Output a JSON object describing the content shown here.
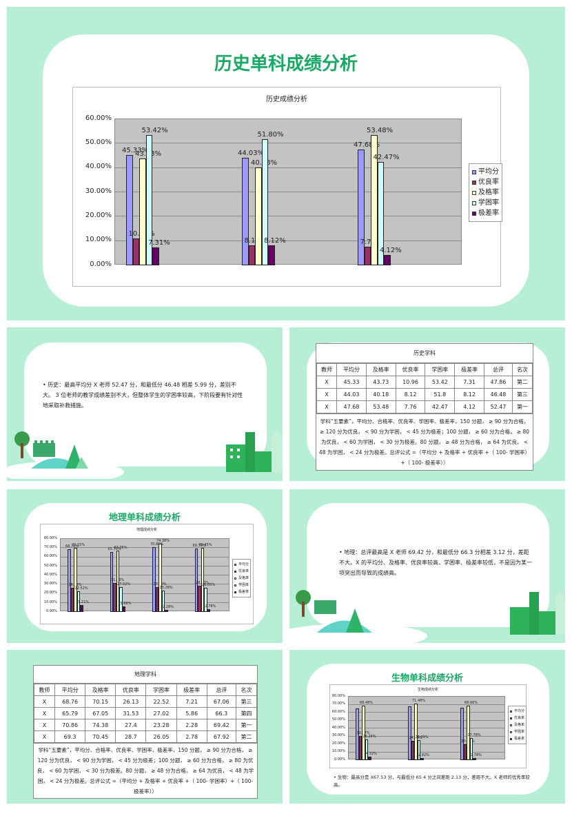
{
  "slide1": {
    "title": "历史单科成绩分析",
    "chart_data": {
      "type": "bar",
      "title": "历史成绩分析",
      "categories": [
        "",
        "",
        ""
      ],
      "yticks": [
        "60.00%",
        "50.00%",
        "40.00%",
        "30.00%",
        "20.00%",
        "10.00%",
        "0.00%"
      ],
      "ylim": [
        0,
        60
      ],
      "series": [
        {
          "name": "平均分",
          "color": "#9999ff",
          "values": [
            45.33,
            44.03,
            47.68
          ],
          "labels": [
            "45.33%",
            "44.03%",
            "47.68%"
          ]
        },
        {
          "name": "优良率",
          "color": "#993366",
          "values": [
            10.96,
            8.12,
            7.76
          ],
          "labels": [
            "10.96%",
            "8.12%",
            "7.76%"
          ]
        },
        {
          "name": "及格率",
          "color": "#ffffcc",
          "values": [
            43.73,
            40.18,
            53.48
          ],
          "labels": [
            "43.73%",
            "40.18%",
            "53.48%"
          ]
        },
        {
          "name": "学困率",
          "color": "#ccffff",
          "values": [
            53.42,
            51.8,
            42.47
          ],
          "labels": [
            "53.42%",
            "51.80%",
            "42.47%"
          ]
        },
        {
          "name": "极差率",
          "color": "#660066",
          "values": [
            7.31,
            8.12,
            4.12
          ],
          "labels": [
            "7.31%",
            "8.12%",
            "4.12%"
          ]
        }
      ],
      "legend": "right"
    }
  },
  "slide2": {
    "text": "• 历史：最高平均分 X 老师 52.47 分，和最低分 46.48 相差 5.99 分，差别不大。 3 位老师的教学成绩差别不大，但整体学生的学困率较高，下阶段要有针对性地采取补救措施。"
  },
  "slide3": {
    "table_title": "历史学科",
    "headers": [
      "教师",
      "平均分",
      "及格率",
      "优良率",
      "学困率",
      "极差率",
      "总评",
      "名次"
    ],
    "rows": [
      [
        "X",
        "45.33",
        "43.73",
        "10.96",
        "53.42",
        "7.31",
        "47.86",
        "第二"
      ],
      [
        "X",
        "44.03",
        "40.18",
        "8.12",
        "51.8",
        "8.12",
        "46.48",
        "第三"
      ],
      [
        "X",
        "47.68",
        "53.48",
        "7.76",
        "42.47",
        "4.12",
        "52.47",
        "第一"
      ]
    ],
    "note": "学科“五要素”，平均分、合格率、优良率、学困率、极差率，150 分题， ≥ 90 分为合格， ≥ 120 分为优良， < 90 分为学困， < 45 分为极差；100 分题， ≥ 60 分为合格， ≥ 80 为优良， < 60 为学困， < 30 分为极差。80 分题， ≥ 48 分为合格， ≥ 64 为优良， < 48 为学困， < 24 分为极差。总评公式 =（平均分 + 及格率 + 优良率 +（ 100- 学困率）+（ 100- 极差率））"
  },
  "slide4": {
    "title": "地理单科成绩分析",
    "chart_data": {
      "type": "bar",
      "title": "地理成绩分析",
      "categories": [
        "",
        "",
        "",
        ""
      ],
      "yticks": [
        "80.00%",
        "70.00%",
        "60.00%",
        "50.00%",
        "40.00%",
        "30.00%",
        "20.00%",
        "10.00%",
        "0.00%"
      ],
      "ylim": [
        0,
        80
      ],
      "series": [
        {
          "name": "平均分",
          "color": "#9999ff",
          "values": [
            68.76,
            65.79,
            70.86,
            69.3
          ],
          "labels": [
            "68.76%",
            "65.79%",
            "70.86%",
            "69.30%"
          ]
        },
        {
          "name": "优良率",
          "color": "#993366",
          "values": [
            26.13,
            31.53,
            27.4,
            28.7
          ],
          "labels": [
            "26.13%",
            "31.53%",
            "27.40%",
            "28.70%"
          ]
        },
        {
          "name": "及格率",
          "color": "#ffffcc",
          "values": [
            70.15,
            67.05,
            74.38,
            70.45
          ],
          "labels": [
            "70.15%",
            "67.05%",
            "74.38%",
            "70.45%"
          ]
        },
        {
          "name": "学困率",
          "color": "#ccffff",
          "values": [
            22.52,
            27.02,
            23.28,
            26.05
          ],
          "labels": [
            "22.52%",
            "27.02%",
            "23.28%",
            "26.05%"
          ]
        },
        {
          "name": "极差率",
          "color": "#660066",
          "values": [
            7.21,
            5.86,
            2.28,
            2.78
          ],
          "labels": [
            "7.21%",
            "5.86%",
            "2.28%",
            "2.78%"
          ]
        }
      ],
      "legend": "right"
    }
  },
  "slide5": {
    "text": "• 地理：总评最高是 X 老师 69.42 分，和最低分 66.3 分相差 3.12 分，差距不大。X 的平均分、及格率、优良率较高，学困率、极差率较低，不是因为某一项突出而导致的成绩高。"
  },
  "slide6": {
    "table_title": "地理学科",
    "headers": [
      "教师",
      "平均分",
      "及格率",
      "优良率",
      "学困率",
      "极差率",
      "总评",
      "名次"
    ],
    "rows": [
      [
        "X",
        "68.76",
        "70.15",
        "26.13",
        "22.52",
        "7.21",
        "67.06",
        "第三"
      ],
      [
        "X",
        "65.79",
        "67.05",
        "31.53",
        "27.02",
        "5.86",
        "66.3",
        "第四"
      ],
      [
        "X",
        "70.86",
        "74.38",
        "27.4",
        "23.28",
        "2.28",
        "69.42",
        "第一"
      ],
      [
        "X",
        "69.3",
        "70.45",
        "28.7",
        "26.05",
        "2.78",
        "67.92",
        "第二"
      ]
    ],
    "note": "学科“五要素”，平均分、合格率、优良率、学困率、极差率，150 分题， ≥ 90 分为合格， ≥ 120 分为优良， < 90 分为学困， < 45 分为极差；100 分题， ≥ 60 分为合格， ≥ 80 为优良， < 60 为学困， < 30 分为极差。80 分题， ≥ 48 分为合格， ≥ 64 为优良， < 48 为学困， < 24 分为极差。总评公式 =（平均分 + 及格率 + 优良率 +（ 100- 学困率）+（ 100- 极差率））"
  },
  "slide7": {
    "title": "生物单科成绩分析",
    "chart_data": {
      "type": "bar",
      "title": "生物成绩分析",
      "categories": [
        "",
        "",
        ""
      ],
      "yticks": [
        "80.00%",
        "70.00%",
        "60.00%",
        "50.00%",
        "40.00%",
        "30.00%",
        "20.00%",
        "10.00%",
        "0.00%"
      ],
      "ylim": [
        0,
        80
      ],
      "series": [
        {
          "name": "平均分",
          "color": "#9999ff",
          "values": [
            65.4,
            67.53,
            66.5
          ],
          "labels": [
            "",
            "",
            ""
          ]
        },
        {
          "name": "优良率",
          "color": "#993366",
          "values": [
            30.37,
            24.38,
            20.36
          ],
          "labels": [
            "30.37%",
            "24.38%",
            "20.36%"
          ]
        },
        {
          "name": "及格率",
          "color": "#ffffcc",
          "values": [
            68.48,
            71.48,
            68.66
          ],
          "labels": [
            "68.48%",
            "71.48%",
            "68.66%"
          ]
        },
        {
          "name": "学困率",
          "color": "#ccffff",
          "values": [
            26.26,
            25.09,
            27.78
          ],
          "labels": [
            "26.26%",
            "25.09%",
            "27.78%"
          ]
        },
        {
          "name": "极差率",
          "color": "#660066",
          "values": [
            4.32,
            2.92,
            2.78
          ],
          "labels": [
            "4.32%",
            "2.92%",
            "2.78%"
          ]
        }
      ],
      "legend": "right"
    },
    "text": "• 生物：最高分是 X67.53 分，与最低分 65.4 分之间差距 2.13 分，差距不大。X 老师的优秀率较高。"
  }
}
